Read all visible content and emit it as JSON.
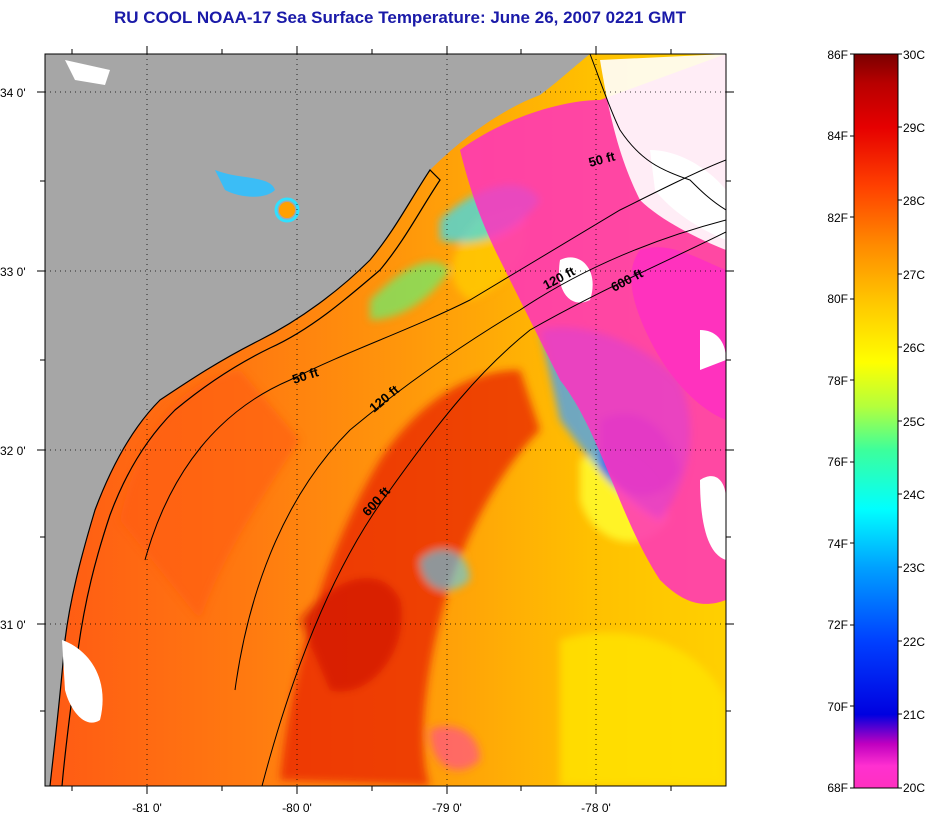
{
  "title": "RU COOL  NOAA-17  Sea Surface Temperature:  June 26, 2007 0221 GMT",
  "axes": {
    "lat_labels": [
      "34 0'",
      "33 0'",
      "32 0'",
      "31 0'"
    ],
    "lon_labels": [
      "-81 0'",
      "-80 0'",
      "-79 0'",
      "-78 0'"
    ]
  },
  "contours": {
    "labels": [
      "50 ft",
      "120 ft",
      "600 ft",
      "50 ft",
      "120 ft",
      "600 ft"
    ]
  },
  "colorbar": {
    "f_labels": [
      "86F",
      "84F",
      "82F",
      "80F",
      "78F",
      "76F",
      "74F",
      "72F",
      "70F",
      "68F"
    ],
    "c_labels": [
      "30C",
      "29C",
      "28C",
      "27C",
      "26C",
      "25C",
      "24C",
      "23C",
      "22C",
      "21C",
      "20C"
    ],
    "colors": [
      "#7a0000",
      "#b80000",
      "#e60000",
      "#ff4000",
      "#ff8a00",
      "#ffc800",
      "#ffff00",
      "#b4ff3c",
      "#3cff9c",
      "#00ffff",
      "#00a0ff",
      "#0040ff",
      "#0000e0",
      "#6000d0",
      "#c000c0",
      "#ff30c0"
    ]
  },
  "colors": {
    "land": "#a6a6a6",
    "title": "#1a1aa8",
    "cloud": "#ffffff"
  }
}
